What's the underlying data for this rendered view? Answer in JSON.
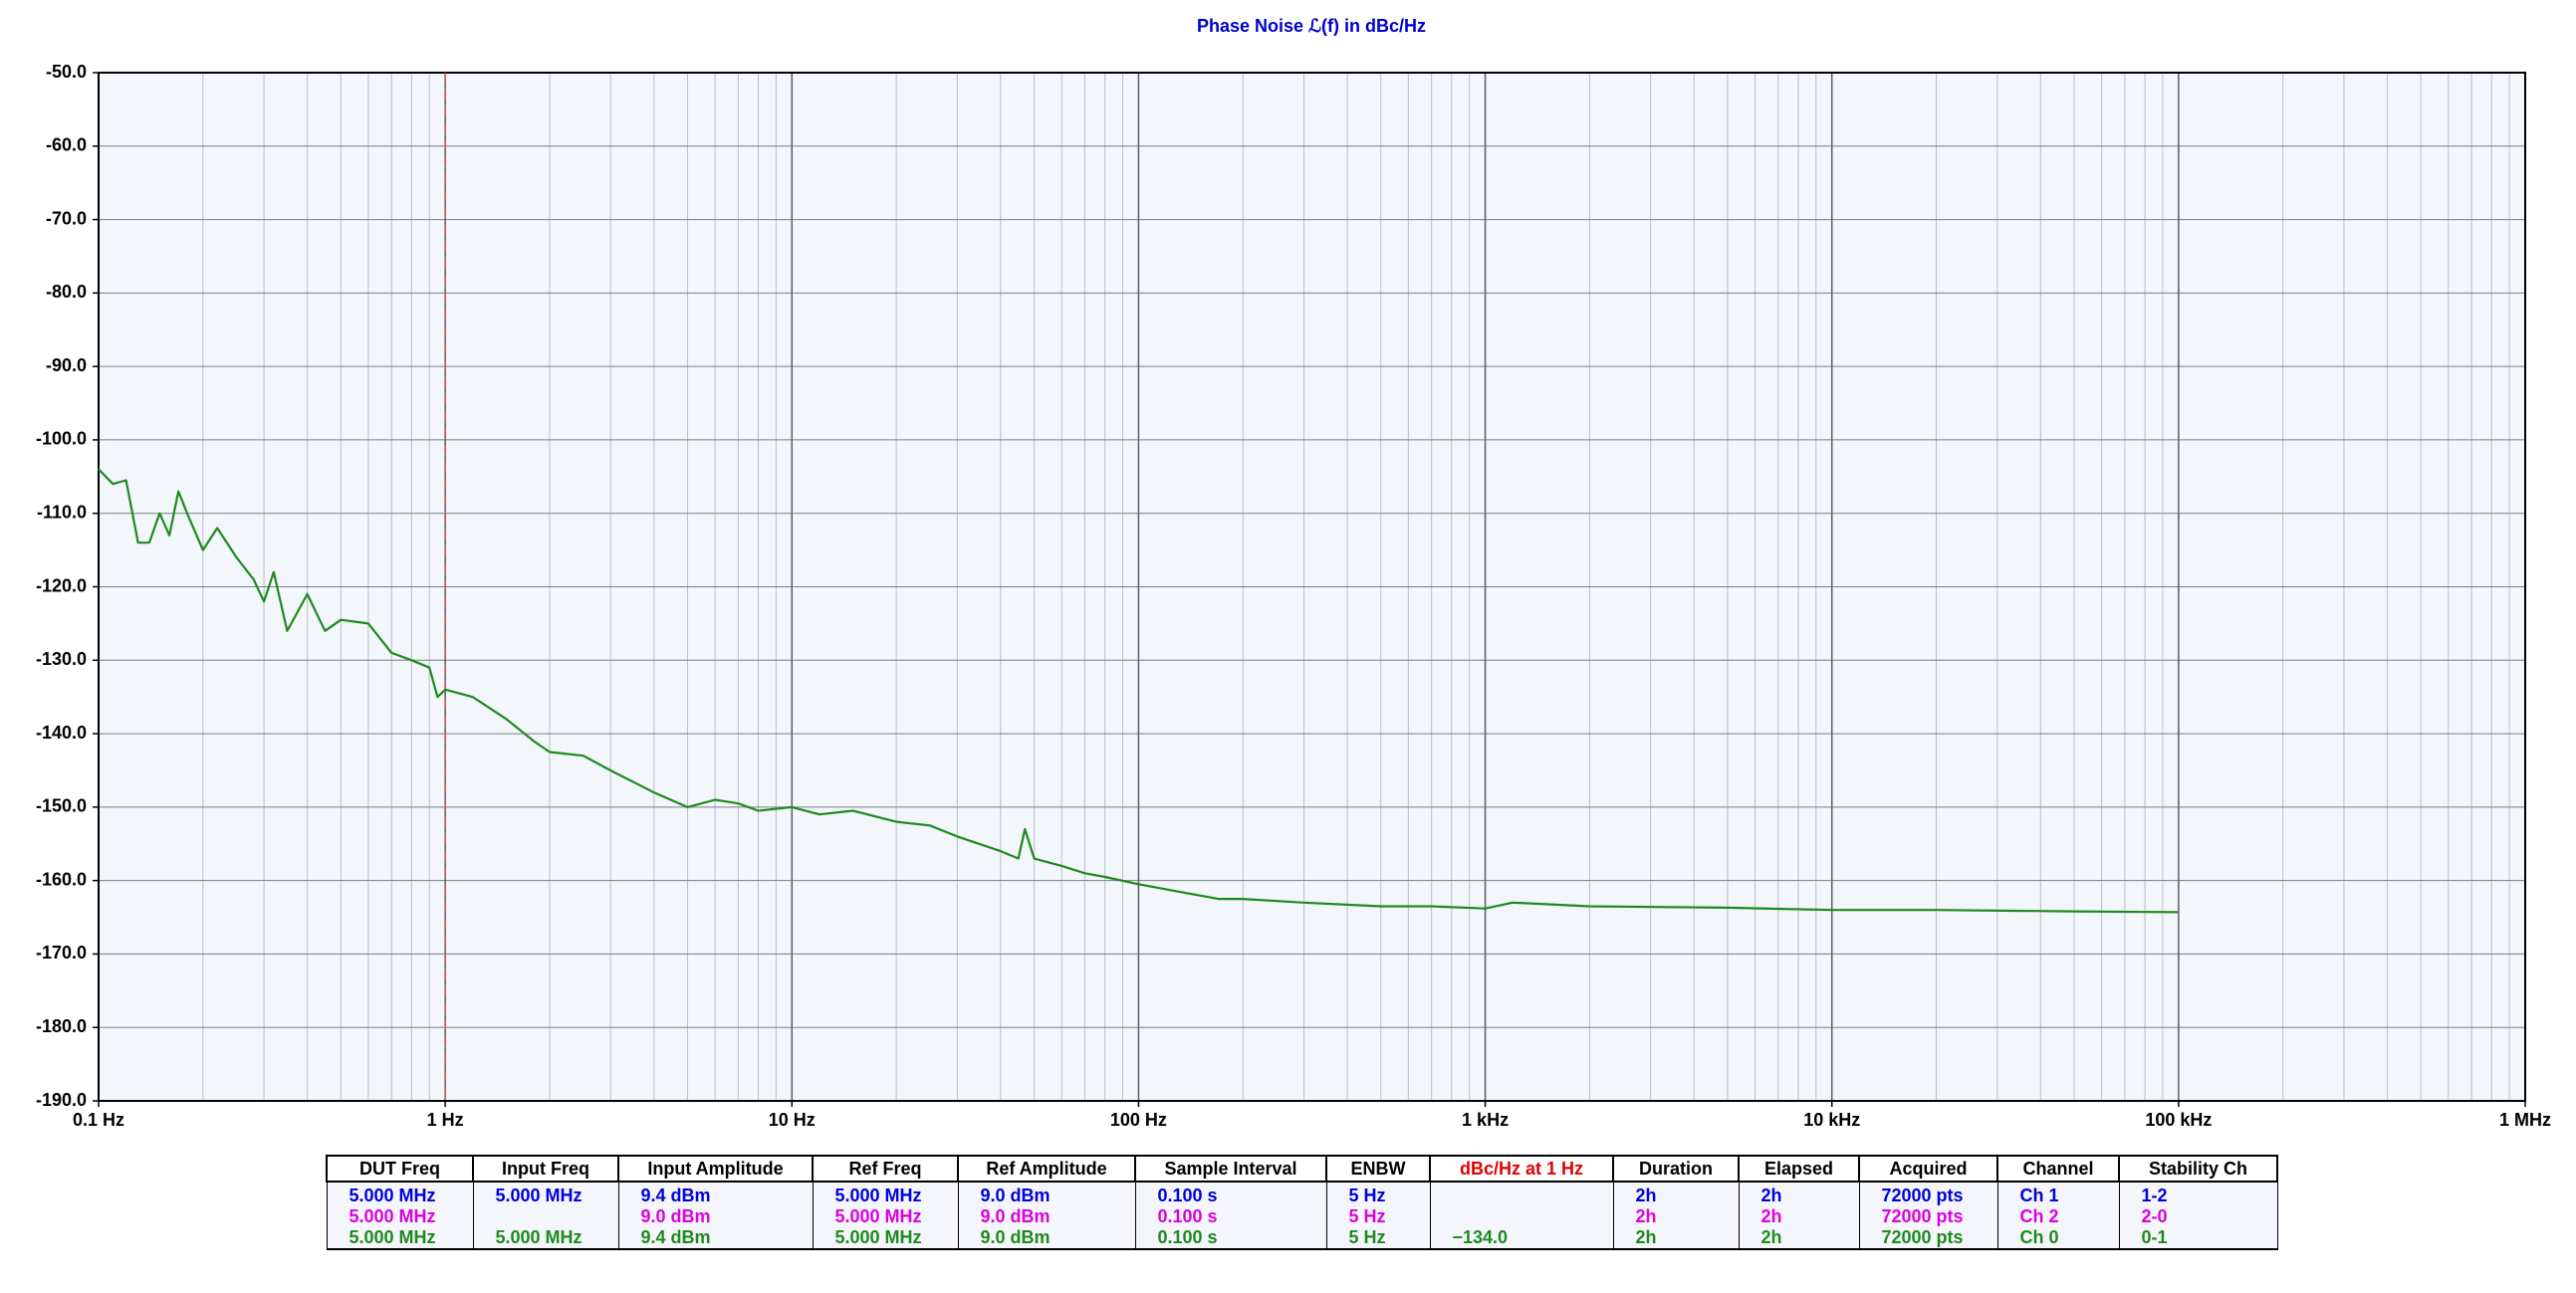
{
  "chart_data": {
    "type": "line",
    "title": "Phase Noise ℒ(f) in dBc/Hz",
    "title_color": "#0000cc",
    "xscale": "log",
    "grid": true,
    "minor_grid": true,
    "xlim": [
      0.1,
      1000000
    ],
    "xticks": [
      {
        "value": 0.1,
        "label": "0.1 Hz"
      },
      {
        "value": 1,
        "label": "1 Hz"
      },
      {
        "value": 10,
        "label": "10 Hz"
      },
      {
        "value": 100,
        "label": "100 Hz"
      },
      {
        "value": 1000,
        "label": "1 kHz"
      },
      {
        "value": 10000,
        "label": "10 kHz"
      },
      {
        "value": 100000,
        "label": "100 kHz"
      },
      {
        "value": 1000000,
        "label": "1 MHz"
      }
    ],
    "ylim": [
      -190,
      -50
    ],
    "yticks": [
      {
        "value": -50,
        "label": "-50.0"
      },
      {
        "value": -60,
        "label": "-60.0"
      },
      {
        "value": -70,
        "label": "-70.0"
      },
      {
        "value": -80,
        "label": "-80.0"
      },
      {
        "value": -90,
        "label": "-90.0"
      },
      {
        "value": -100,
        "label": "-100.0"
      },
      {
        "value": -110,
        "label": "-110.0"
      },
      {
        "value": -120,
        "label": "-120.0"
      },
      {
        "value": -130,
        "label": "-130.0"
      },
      {
        "value": -140,
        "label": "-140.0"
      },
      {
        "value": -150,
        "label": "-150.0"
      },
      {
        "value": -160,
        "label": "-160.0"
      },
      {
        "value": -170,
        "label": "-170.0"
      },
      {
        "value": -180,
        "label": "-180.0"
      },
      {
        "value": -190,
        "label": "-190.0"
      }
    ],
    "spot_frequency": 1,
    "x": [
      0.1,
      0.11,
      0.12,
      0.13,
      0.14,
      0.15,
      0.16,
      0.17,
      0.18,
      0.2,
      0.22,
      0.25,
      0.28,
      0.3,
      0.32,
      0.35,
      0.4,
      0.45,
      0.5,
      0.6,
      0.7,
      0.8,
      0.9,
      0.95,
      1,
      1.2,
      1.5,
      1.8,
      2,
      2.5,
      3,
      4,
      5,
      6,
      7,
      8,
      10,
      12,
      15,
      20,
      25,
      30,
      40,
      45,
      47,
      50,
      60,
      70,
      80,
      100,
      130,
      170,
      200,
      300,
      500,
      700,
      1000,
      1200,
      2000,
      5000,
      10000,
      20000,
      50000,
      100000
    ],
    "series": [
      {
        "name": "Ch 0",
        "color": "#1e8a1e",
        "values": [
          -104,
          -106,
          -105.5,
          -114,
          -114,
          -110,
          -113,
          -107,
          -110,
          -115,
          -112,
          -116,
          -119,
          -122,
          -118,
          -126,
          -121,
          -126,
          -124.5,
          -125,
          -129,
          -130,
          -131,
          -135,
          -134,
          -135,
          -138,
          -141,
          -142.5,
          -143,
          -145,
          -148,
          -150,
          -149,
          -149.5,
          -150.5,
          -150,
          -151,
          -150.5,
          -152,
          -152.5,
          -154,
          -156,
          -157,
          -153,
          -157,
          -158,
          -159,
          -159.5,
          -160.5,
          -161.5,
          -162.5,
          -162.5,
          -163,
          -163.5,
          -163.5,
          -163.8,
          -163,
          -163.5,
          -163.7,
          -164,
          -164,
          -164.2,
          -164.3
        ]
      }
    ]
  },
  "table": {
    "headers": [
      "DUT Freq",
      "Input Freq",
      "Input Amplitude",
      "Ref Freq",
      "Ref Amplitude",
      "Sample Interval",
      "ENBW",
      "dBc/Hz at 1 Hz",
      "Duration",
      "Elapsed",
      "Acquired",
      "Channel",
      "Stability Ch"
    ],
    "highlight_header": 7,
    "row_colors": [
      "#0000dd",
      "#dd00dd",
      "#1e8a1e"
    ],
    "rows": [
      [
        "5.000 MHz",
        "5.000 MHz",
        "9.4 dBm",
        "5.000 MHz",
        "9.0 dBm",
        "0.100 s",
        "5 Hz",
        null,
        "2h",
        "2h",
        "72000 pts",
        "Ch 1",
        "1-2"
      ],
      [
        "5.000 MHz",
        null,
        "9.0 dBm",
        "5.000 MHz",
        "9.0 dBm",
        "0.100 s",
        "5 Hz",
        null,
        "2h",
        "2h",
        "72000 pts",
        "Ch 2",
        "2-0"
      ],
      [
        "5.000 MHz",
        "5.000 MHz",
        "9.4 dBm",
        "5.000 MHz",
        "9.0 dBm",
        "0.100 s",
        "5 Hz",
        "−134.0",
        "2h",
        "2h",
        "72000 pts",
        "Ch 0",
        "0-1"
      ]
    ]
  }
}
